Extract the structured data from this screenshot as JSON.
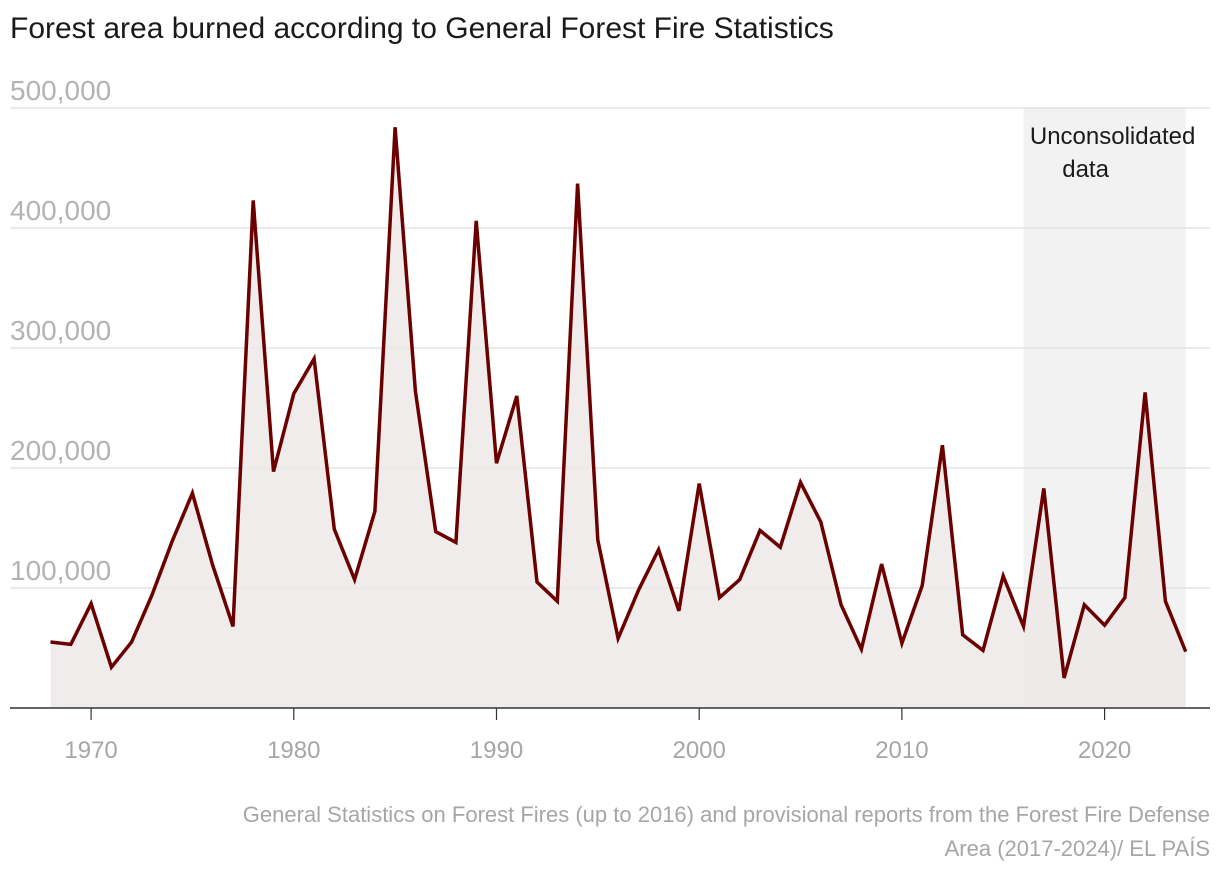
{
  "chart_data": {
    "type": "area",
    "title": "Forest area burned according to General Forest Fire Statistics",
    "xlabel": "",
    "ylabel": "",
    "xlim": [
      1966,
      2025.2
    ],
    "ylim": [
      0,
      500000
    ],
    "y_ticks": [
      100000,
      200000,
      300000,
      400000,
      500000
    ],
    "y_tick_labels": [
      "100,000",
      "200,000",
      "300,000",
      "400,000",
      "500,000"
    ],
    "x_ticks": [
      1970,
      1980,
      1990,
      2000,
      2010,
      2020
    ],
    "x_tick_labels": [
      "1970",
      "1980",
      "1990",
      "2000",
      "2010",
      "2020"
    ],
    "grid": true,
    "highlight_band": {
      "from": 2016,
      "to": 2024,
      "label_lines": [
        "Unconsolidated",
        "data"
      ]
    },
    "series": [
      {
        "name": "Forest area burned",
        "color": "#6b0000",
        "fill_color": "#efe9e9",
        "x": [
          1968,
          1969,
          1970,
          1971,
          1972,
          1973,
          1974,
          1975,
          1976,
          1977,
          1978,
          1979,
          1980,
          1981,
          1982,
          1983,
          1984,
          1985,
          1986,
          1987,
          1988,
          1989,
          1990,
          1991,
          1992,
          1993,
          1994,
          1995,
          1996,
          1997,
          1998,
          1999,
          2000,
          2001,
          2002,
          2003,
          2004,
          2005,
          2006,
          2007,
          2008,
          2009,
          2010,
          2011,
          2012,
          2013,
          2014,
          2015,
          2016,
          2017,
          2018,
          2019,
          2020,
          2021,
          2022,
          2023,
          2024
        ],
        "values": [
          55000,
          53000,
          87000,
          34000,
          55000,
          94000,
          139000,
          179000,
          119000,
          68000,
          423000,
          197000,
          262000,
          291000,
          149000,
          107000,
          164000,
          484000,
          264000,
          147000,
          138000,
          406000,
          204000,
          260000,
          105000,
          89000,
          437000,
          140000,
          58000,
          98000,
          132000,
          81000,
          187000,
          92000,
          107000,
          148000,
          134000,
          188000,
          155000,
          86000,
          49000,
          120000,
          54000,
          102000,
          219000,
          61000,
          48000,
          110000,
          68000,
          183000,
          25000,
          86000,
          69000,
          92000,
          263000,
          89000,
          47000
        ]
      }
    ]
  },
  "source": {
    "line1": "General Statistics on Forest Fires (up to 2016) and provisional reports from the Forest Fire Defense",
    "line2": "Area (2017-2024)/ EL PAÍS"
  }
}
